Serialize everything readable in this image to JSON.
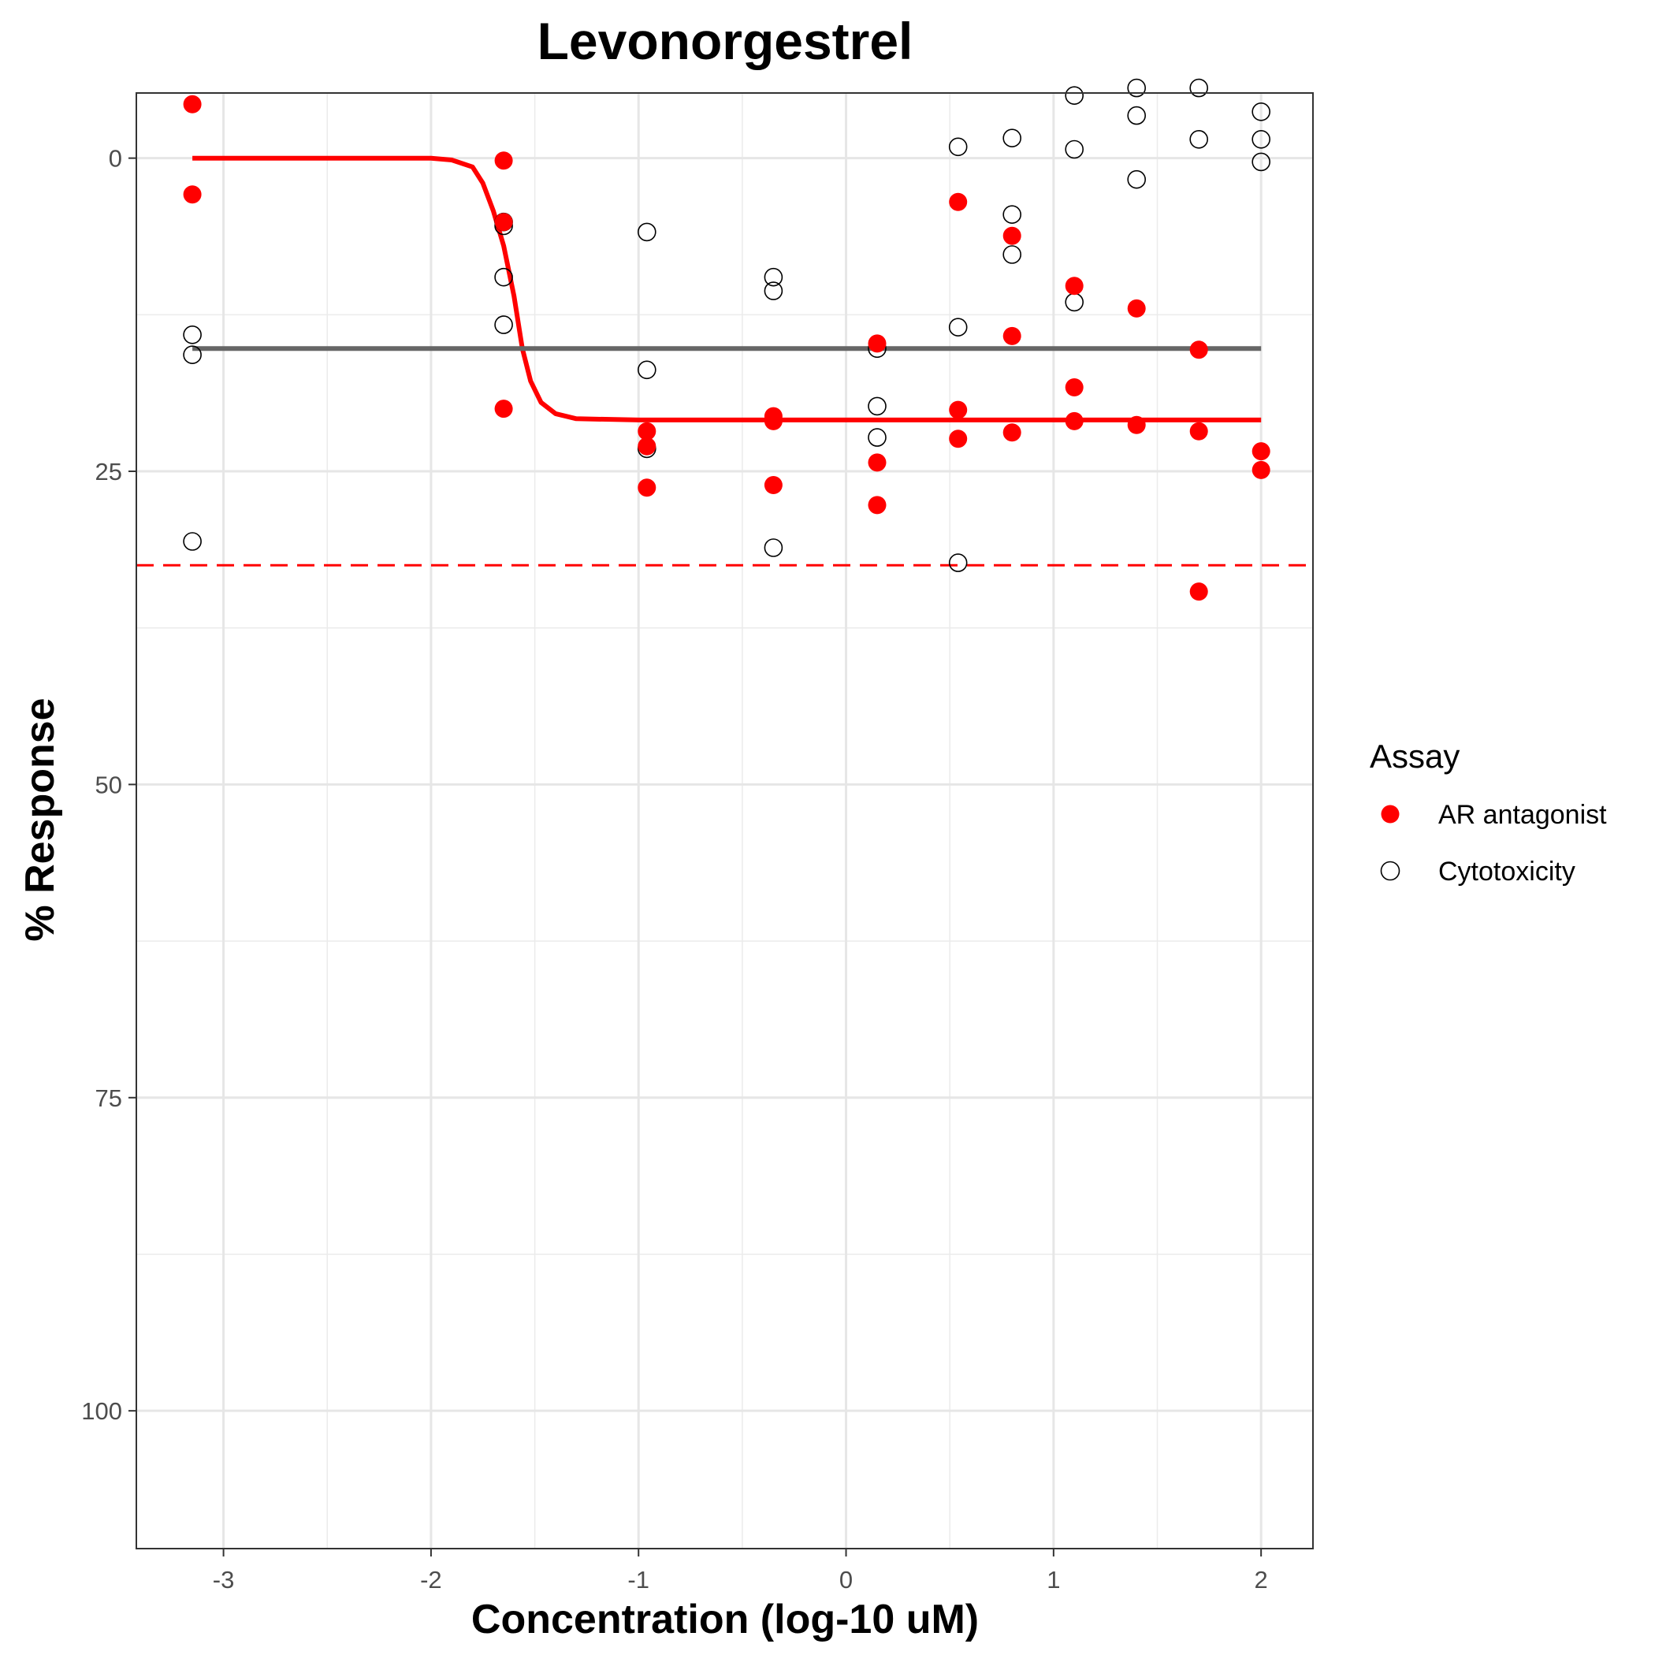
{
  "chart_data": {
    "type": "scatter",
    "title": "Levonorgestrel",
    "xlabel": "Concentration (log-10 uM)",
    "ylabel": "% Response",
    "xlim": [
      -3.42,
      2.25
    ],
    "ylim": [
      111,
      -5.2
    ],
    "y_reversed": true,
    "grid": true,
    "legend_placement": "right",
    "x_ticks": [
      {
        "value": -3,
        "label": "-3"
      },
      {
        "value": -2,
        "label": "-2"
      },
      {
        "value": -1,
        "label": "-1"
      },
      {
        "value": 0,
        "label": "0"
      },
      {
        "value": 1,
        "label": "1"
      },
      {
        "value": 2,
        "label": "2"
      }
    ],
    "y_ticks": [
      {
        "value": 0,
        "label": "0"
      },
      {
        "value": 25,
        "label": "25"
      },
      {
        "value": 50,
        "label": "50"
      },
      {
        "value": 75,
        "label": "75"
      },
      {
        "value": 100,
        "label": "100"
      }
    ],
    "legend": {
      "title": "Assay",
      "entries": [
        {
          "label": "AR antagonist",
          "marker": "filled-circle",
          "color": "#ff0000"
        },
        {
          "label": "Cytotoxicity",
          "marker": "open-circle",
          "color": "#000000"
        }
      ]
    },
    "series": [
      {
        "name": "AR antagonist",
        "color": "#ff0000",
        "marker": "filled",
        "points": [
          [
            -3.15,
            -4.3
          ],
          [
            -3.15,
            2.9
          ],
          [
            -1.65,
            0.2
          ],
          [
            -1.65,
            5.1
          ],
          [
            -1.65,
            20.0
          ],
          [
            -0.96,
            21.8
          ],
          [
            -0.96,
            23.0
          ],
          [
            -0.96,
            26.3
          ],
          [
            -0.35,
            20.6
          ],
          [
            -0.35,
            21.0
          ],
          [
            -0.35,
            26.1
          ],
          [
            0.15,
            14.8
          ],
          [
            0.15,
            24.3
          ],
          [
            0.15,
            27.7
          ],
          [
            0.54,
            3.5
          ],
          [
            0.54,
            20.1
          ],
          [
            0.54,
            22.4
          ],
          [
            0.8,
            6.2
          ],
          [
            0.8,
            14.2
          ],
          [
            0.8,
            21.9
          ],
          [
            1.1,
            10.2
          ],
          [
            1.1,
            18.3
          ],
          [
            1.1,
            21.0
          ],
          [
            1.4,
            12.0
          ],
          [
            1.4,
            21.3
          ],
          [
            1.7,
            15.3
          ],
          [
            1.7,
            21.8
          ],
          [
            1.7,
            34.6
          ],
          [
            2.0,
            23.4
          ],
          [
            2.0,
            24.9
          ]
        ]
      },
      {
        "name": "Cytotoxicity",
        "color": "#000000",
        "marker": "open",
        "points": [
          [
            -3.15,
            14.1
          ],
          [
            -3.15,
            15.7
          ],
          [
            -3.15,
            30.6
          ],
          [
            -1.65,
            5.1
          ],
          [
            -1.65,
            5.4
          ],
          [
            -1.65,
            9.5
          ],
          [
            -1.65,
            13.3
          ],
          [
            -0.96,
            5.9
          ],
          [
            -0.96,
            16.9
          ],
          [
            -0.96,
            23.2
          ],
          [
            -0.35,
            9.5
          ],
          [
            -0.35,
            10.6
          ],
          [
            -0.35,
            31.1
          ],
          [
            0.15,
            15.2
          ],
          [
            0.15,
            19.8
          ],
          [
            0.15,
            22.3
          ],
          [
            0.54,
            -0.9
          ],
          [
            0.54,
            13.5
          ],
          [
            0.54,
            32.3
          ],
          [
            0.8,
            -1.6
          ],
          [
            0.8,
            4.5
          ],
          [
            0.8,
            7.7
          ],
          [
            1.1,
            -5.0
          ],
          [
            1.1,
            -0.7
          ],
          [
            1.1,
            11.5
          ],
          [
            1.4,
            -3.4
          ],
          [
            1.4,
            1.7
          ],
          [
            1.4,
            -5.6
          ],
          [
            1.7,
            -1.5
          ],
          [
            1.7,
            -5.6
          ],
          [
            2.0,
            -3.7
          ],
          [
            2.0,
            -1.5
          ],
          [
            2.0,
            0.3
          ]
        ]
      }
    ],
    "fit_lines": [
      {
        "series": "AR antagonist",
        "color": "#ff0000",
        "style": "solid",
        "curve": [
          [
            -3.15,
            0.0
          ],
          [
            -2.4,
            0.0
          ],
          [
            -2.0,
            0.0
          ],
          [
            -1.9,
            0.15
          ],
          [
            -1.8,
            0.7
          ],
          [
            -1.75,
            2.0
          ],
          [
            -1.7,
            4.2
          ],
          [
            -1.65,
            7.0
          ],
          [
            -1.6,
            11.0
          ],
          [
            -1.56,
            15.2
          ],
          [
            -1.52,
            17.8
          ],
          [
            -1.47,
            19.5
          ],
          [
            -1.4,
            20.4
          ],
          [
            -1.3,
            20.8
          ],
          [
            -1.0,
            20.9
          ],
          [
            0.0,
            20.9
          ],
          [
            2.0,
            20.9
          ]
        ]
      },
      {
        "series": "Cytotoxicity",
        "color": "#666666",
        "style": "solid",
        "curve": [
          [
            -3.15,
            15.2
          ],
          [
            2.0,
            15.2
          ]
        ]
      }
    ],
    "reference_lines": [
      {
        "orientation": "horizontal",
        "value": 32.5,
        "color": "#ff0000",
        "style": "dashed"
      }
    ]
  }
}
